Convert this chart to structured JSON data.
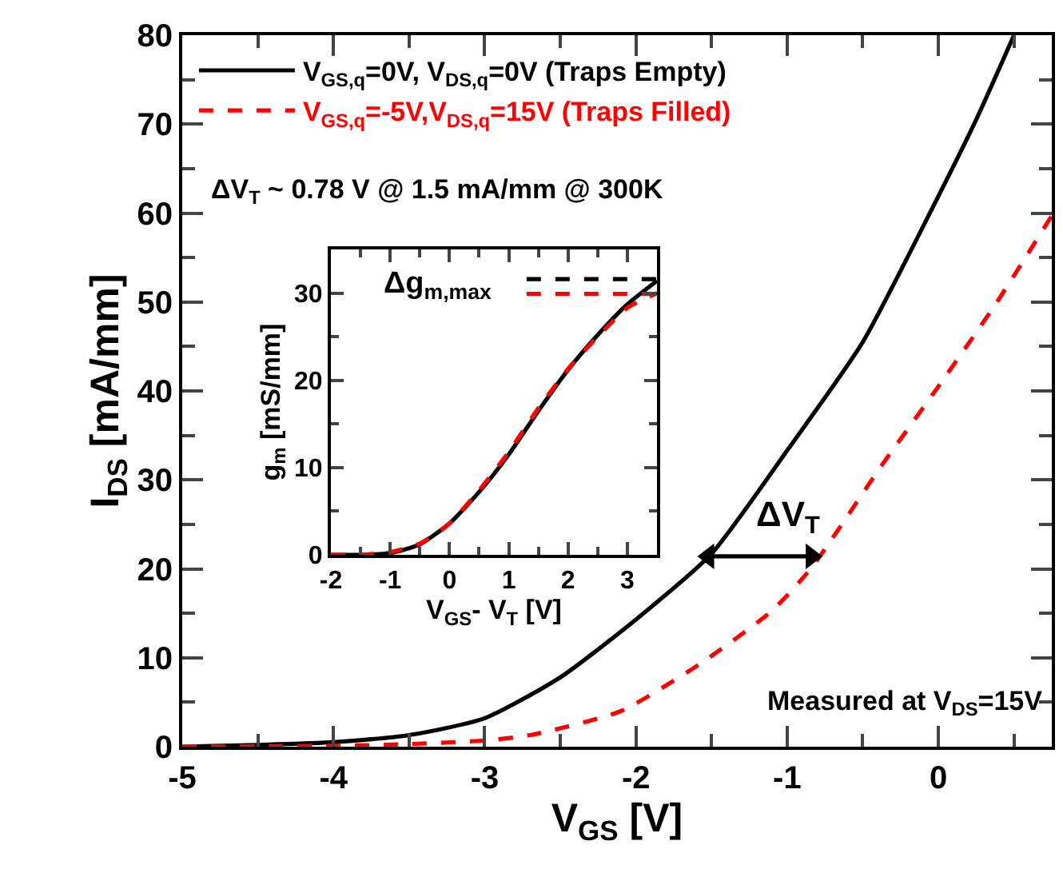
{
  "chart_data": [
    {
      "type": "line",
      "xlabel": "V$_{GS}$ [V]",
      "ylabel": "I$_{DS}$ [mA/mm]",
      "xlim": [
        -5,
        0.75
      ],
      "ylim": [
        0,
        80
      ],
      "xticks": [
        -5,
        -4,
        -3,
        -2,
        -1,
        0,
        {
          "value": -4.5,
          "label": null
        },
        {
          "value": -3.5,
          "label": null
        },
        {
          "value": -2.5,
          "label": null
        },
        {
          "value": -1.5,
          "label": null
        },
        {
          "value": -0.5,
          "label": null
        },
        {
          "value": 0.5,
          "label": null
        }
      ],
      "yticks": [
        0,
        10,
        20,
        30,
        40,
        50,
        60,
        70,
        80,
        {
          "value": 5,
          "label": null
        },
        {
          "value": 15,
          "label": null
        },
        {
          "value": 25,
          "label": null
        },
        {
          "value": 35,
          "label": null
        },
        {
          "value": 45,
          "label": null
        },
        {
          "value": 55,
          "label": null
        },
        {
          "value": 65,
          "label": null
        },
        {
          "value": 75,
          "label": null
        }
      ],
      "grid": false,
      "legend": "top left",
      "series": [
        {
          "name": "V$_{GS,q}$=0V, V$_{DS,q}$=0V (Traps Empty)",
          "color": "#000000",
          "line_style": "solid",
          "x": [
            -5,
            -4.5,
            -4,
            -3.5,
            -3,
            -2.5,
            -2,
            -1.5,
            -1,
            -0.5,
            0,
            0.25,
            0.5
          ],
          "values": [
            0,
            0.2,
            0.5,
            1.3,
            3.2,
            7.8,
            14.3,
            21.7,
            33.3,
            45.5,
            61.9,
            70.5,
            80
          ]
        },
        {
          "name": "V$_{GS,q}$=-5V,V$_{DS,q}$=15V (Traps Filled)",
          "color": "#ff0000",
          "line_style": "dashed",
          "x": [
            -5,
            -4,
            -3.5,
            -3,
            -2.7,
            -2.1,
            -1.56,
            -1.1,
            -0.84,
            -0.38,
            0,
            0.38,
            0.75
          ],
          "values": [
            0,
            0.1,
            0.3,
            0.7,
            1.3,
            4,
            9.5,
            15.3,
            20.1,
            31.5,
            40.5,
            49.8,
            59.7
          ]
        },
        {
          "color": "#000000",
          "line_style": "solid",
          "marker": "triangle",
          "x": [
            -1.52,
            -0.84
          ],
          "values": [
            21.4,
            21.4
          ]
        }
      ],
      "annotations": [
        "ΔV$_{T}$ ~ 0.78 V @ 1.5 mA/mm @ 300K",
        "Measured at V$_{DS}$=15V",
        {
          "text": "ΔV$_{T}$",
          "x": -1.05,
          "y": 21.4
        }
      ]
    },
    {
      "type": "line",
      "xlabel": "V$_{GS}$- V$_{T}$ [V]",
      "ylabel": "g$_{m}$ [mS/mm]",
      "xlim": [
        -2,
        3.5
      ],
      "ylim": [
        0,
        35
      ],
      "xticks": [
        -2,
        -1,
        0,
        1,
        2,
        3,
        {
          "value": -1.5,
          "label": null
        },
        {
          "value": -0.5,
          "label": null
        },
        {
          "value": 0.5,
          "label": null
        },
        {
          "value": 1.5,
          "label": null
        },
        {
          "value": 2.5,
          "label": null
        }
      ],
      "yticks": [
        0,
        10,
        20,
        30,
        {
          "value": 5,
          "label": null
        },
        {
          "value": 15,
          "label": null
        },
        {
          "value": 25,
          "label": null
        }
      ],
      "grid": false,
      "legend": false,
      "series": [
        {
          "color": "#000000",
          "line_style": "solid",
          "x": [
            -2,
            -1.5,
            -1,
            -0.5,
            0,
            0.5,
            1,
            1.5,
            2,
            2.5,
            3,
            3.5
          ],
          "values": [
            0,
            0,
            0.2,
            1.2,
            3.6,
            7.2,
            11.5,
            16.5,
            21.2,
            25.2,
            28.7,
            31.4
          ]
        },
        {
          "color": "#ff0000",
          "line_style": "dashed",
          "x": [
            -2,
            -1.5,
            -1,
            -0.5,
            0,
            0.5,
            1,
            1.5,
            2,
            2.5,
            3,
            3.5
          ],
          "values": [
            0,
            0,
            0.3,
            1.3,
            3.6,
            7.4,
            11.8,
            16.8,
            21.3,
            25,
            28.3,
            30
          ]
        },
        {
          "color": "#000000",
          "line_style": "dashed",
          "x": [
            1.3,
            3.5
          ],
          "values": [
            31.6,
            31.6
          ]
        },
        {
          "color": "#ff0000",
          "line_style": "dashed",
          "x": [
            1.3,
            3.5
          ],
          "values": [
            29.9,
            29.9
          ]
        }
      ],
      "annotations": [
        "Δg$_{m,max}$"
      ]
    }
  ]
}
